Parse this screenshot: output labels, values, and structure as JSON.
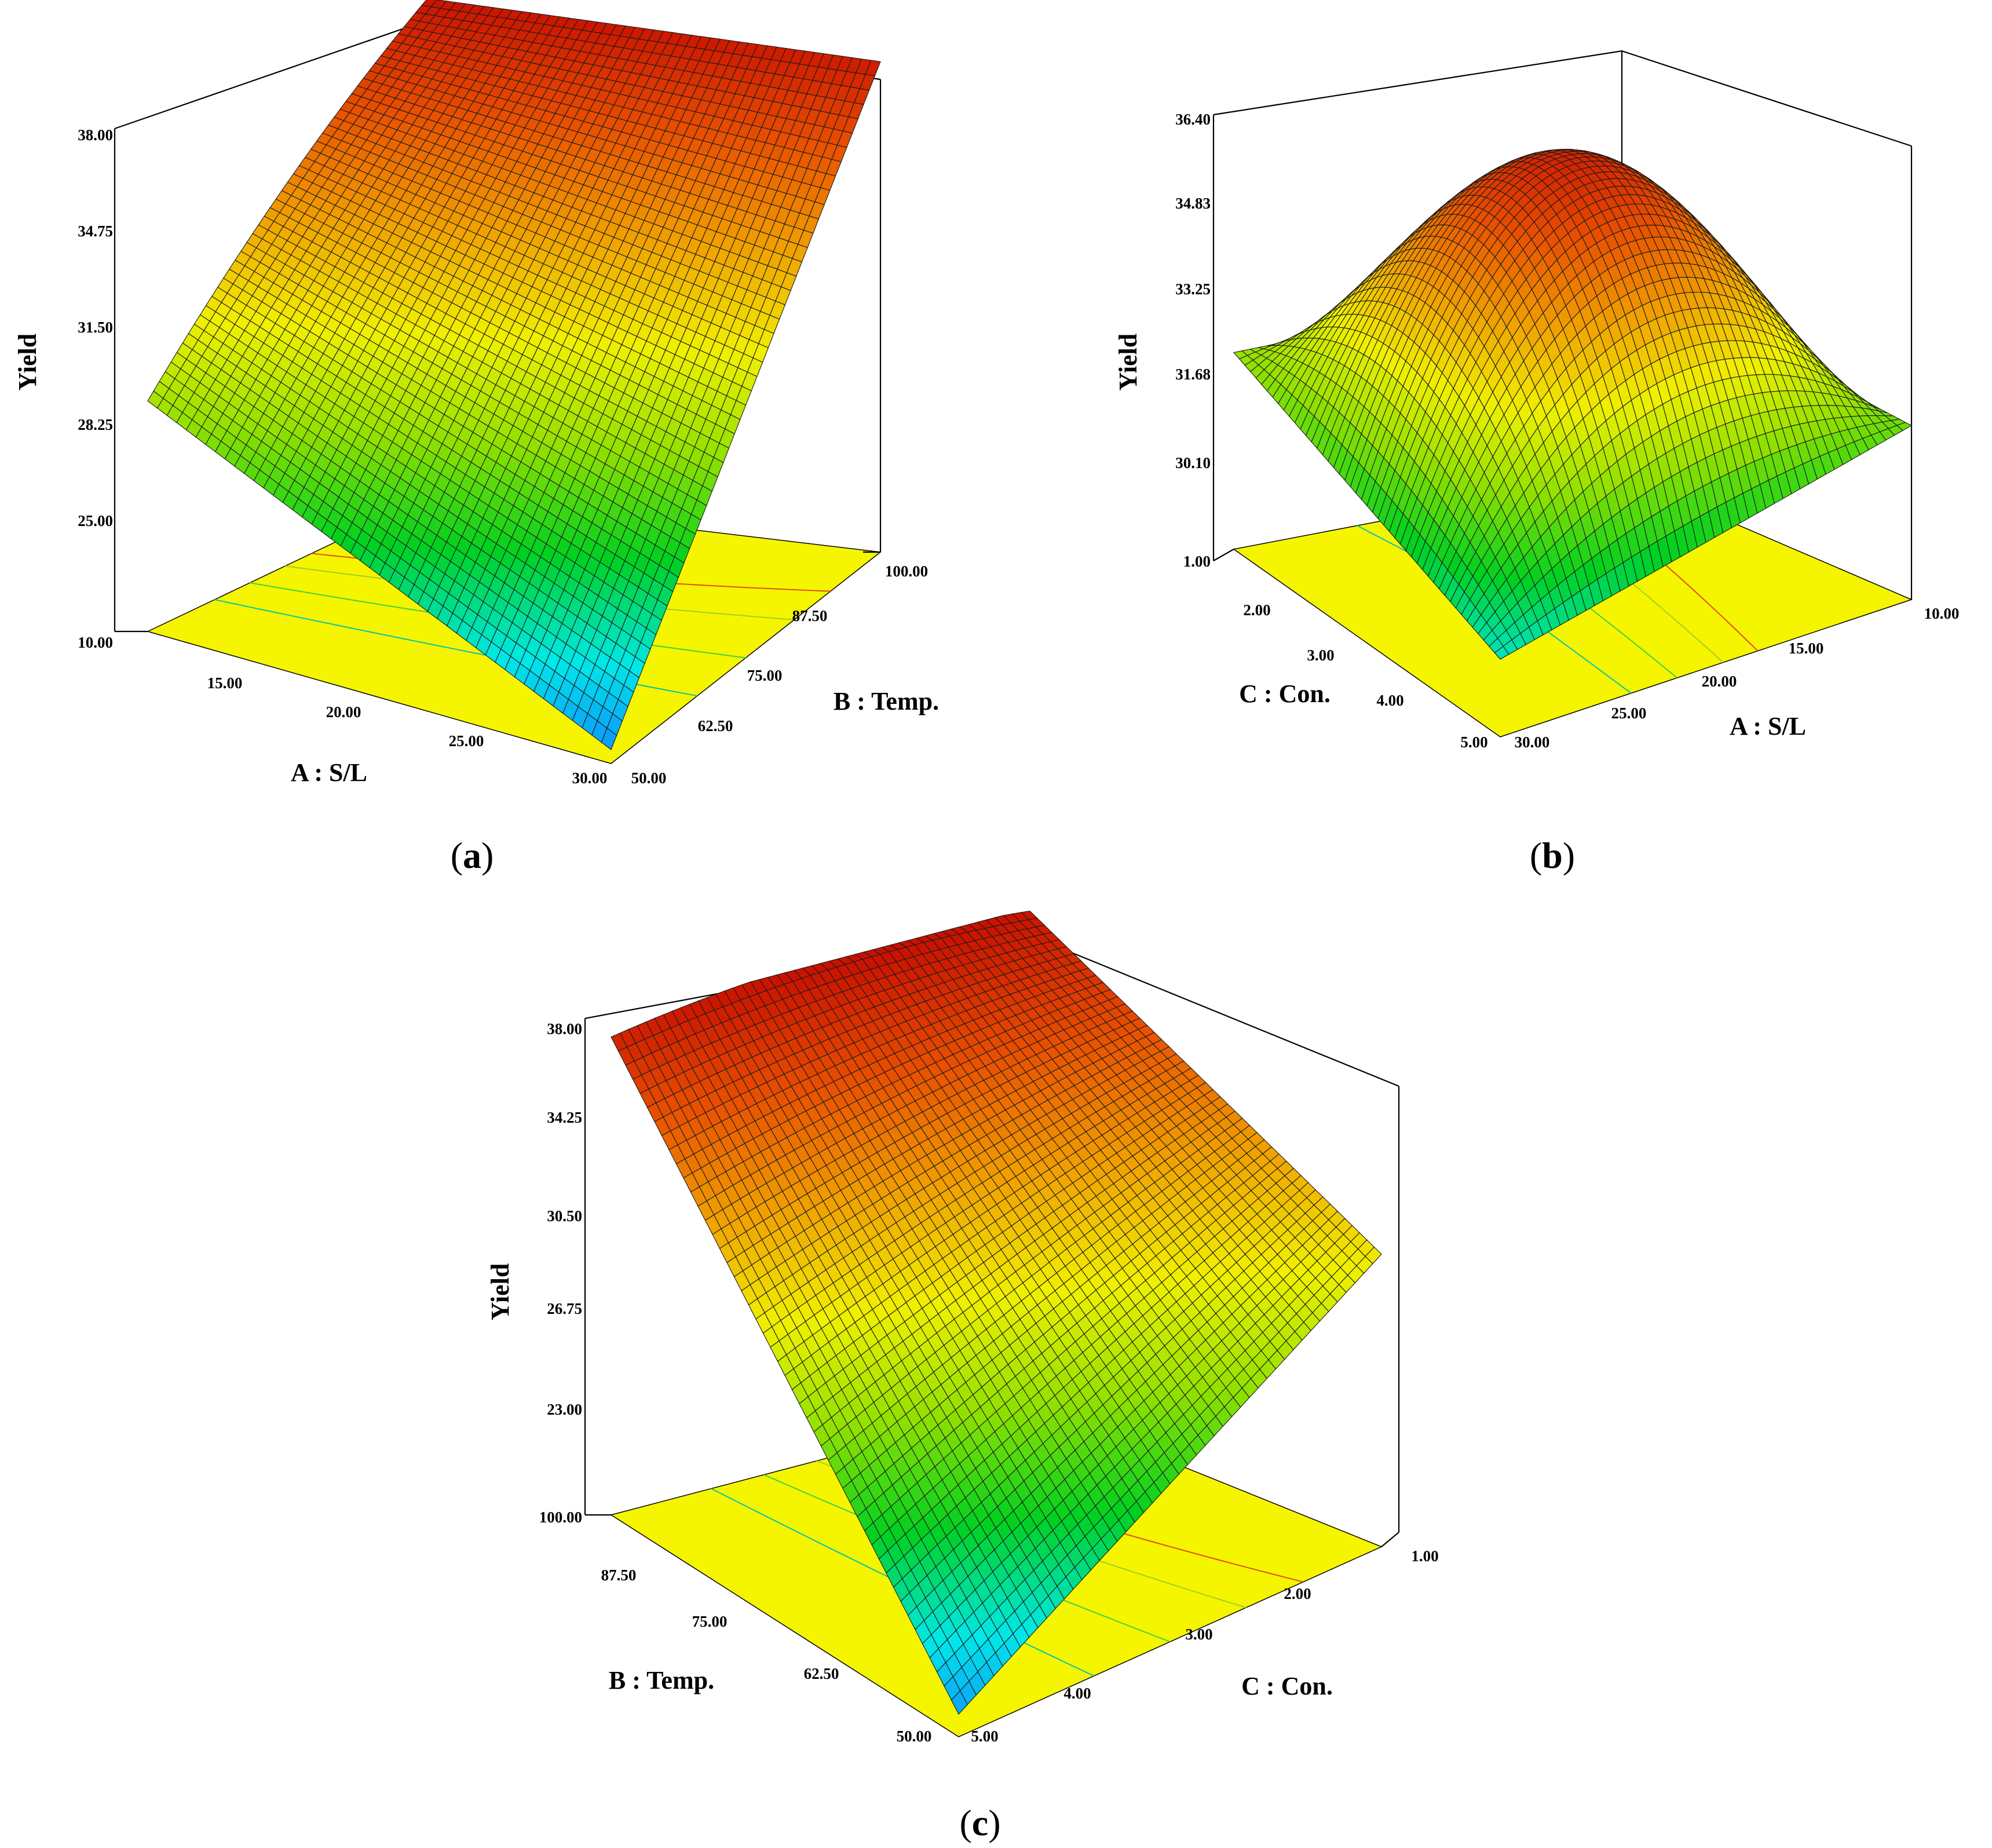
{
  "chart_data": [
    {
      "type": "surface",
      "caption": "a",
      "zlabel": "Yield",
      "ztick_labels": [
        "25.00",
        "28.25",
        "31.50",
        "34.75",
        "38.00"
      ],
      "z_floor_label": "10.00",
      "zlim": [
        21.75,
        38.0
      ],
      "x_axis": {
        "label": "A : S/L",
        "range": [
          10.0,
          30.0
        ],
        "tick_labels": [
          "15.00",
          "20.00",
          "25.00",
          "30.00"
        ]
      },
      "y_axis": {
        "label": "B : Temp.",
        "range": [
          50.0,
          100.0
        ],
        "tick_labels": [
          "50.00",
          "62.50",
          "75.00",
          "87.50",
          "100.00"
        ]
      },
      "surface": {
        "corners": {
          "x10_y50": 29.2,
          "x30_y50": 22.2,
          "x30_y100": 37.6,
          "x10_y100": 37.9
        },
        "peak": 38.0
      },
      "colormap": [
        "#1080ff",
        "#00e8e8",
        "#00d020",
        "#90e000",
        "#f0f000",
        "#f0a000",
        "#e85000",
        "#c81000"
      ]
    },
    {
      "type": "surface",
      "caption": "b",
      "zlabel": "Yield",
      "ztick_labels": [
        "30.10",
        "31.68",
        "33.25",
        "34.83",
        "36.40"
      ],
      "z_floor_label": "1.00",
      "zlim": [
        28.53,
        36.4
      ],
      "x_axis": {
        "label": "C : Con.",
        "range": [
          1.0,
          5.0
        ],
        "tick_labels": [
          "2.00",
          "3.00",
          "4.00",
          "5.00"
        ]
      },
      "y_axis": {
        "label": "A : S/L",
        "range": [
          10.0,
          30.0
        ],
        "tick_labels": [
          "30.00",
          "25.00",
          "20.00",
          "15.00",
          "10.00"
        ]
      },
      "surface": {
        "corners": {
          "x1_y10": 32.0,
          "x5_y30": 29.9,
          "x5_y10": 31.6,
          "x1_y30": 32.1
        },
        "peak": 36.4
      },
      "colormap": [
        "#1080ff",
        "#00e8e8",
        "#00d020",
        "#90e000",
        "#f0f000",
        "#f0a000",
        "#e85000",
        "#c81000"
      ]
    },
    {
      "type": "surface",
      "caption": "c",
      "zlabel": "Yield",
      "ztick_labels": [
        "23.00",
        "26.75",
        "30.50",
        "34.25",
        "38.00"
      ],
      "z_floor_label": "100.00",
      "zlim": [
        19.25,
        38.0
      ],
      "x_axis": {
        "label": "B : Temp.",
        "range": [
          50.0,
          100.0
        ],
        "tick_labels": [
          "87.50",
          "75.00",
          "62.50",
          "50.00"
        ]
      },
      "y_axis": {
        "label": "C : Con.",
        "range": [
          1.0,
          5.0
        ],
        "tick_labels": [
          "5.00",
          "4.00",
          "3.00",
          "2.00",
          "1.00"
        ]
      },
      "surface": {
        "corners": {
          "x100_y5": 37.3,
          "x50_y5": 20.1,
          "x50_y1": 30.3,
          "x100_y1": 37.9
        },
        "peak": 38.0
      },
      "colormap": [
        "#1080ff",
        "#00e8e8",
        "#00d020",
        "#90e000",
        "#f0f000",
        "#f0a000",
        "#e85000",
        "#c81000"
      ]
    }
  ]
}
